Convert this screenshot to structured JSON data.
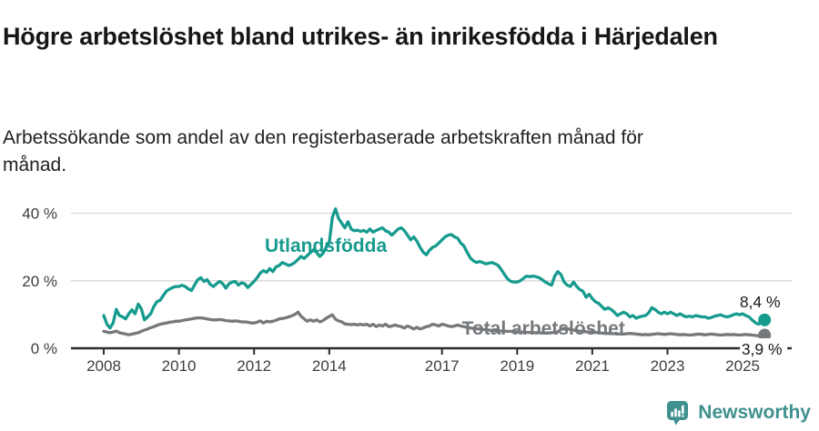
{
  "header": {
    "title": "Högre arbetslöshet bland utrikes- än inrikesfödda i Härjedalen",
    "subtitle": "Arbetssökande som andel av den registerbaserade arbetskraften månad för månad."
  },
  "footer": {
    "brand": "Newsworthy",
    "brand_color": "#3f908e",
    "brand_icon": "newsworthy-bar-chart-bubble-icon"
  },
  "chart_data": {
    "type": "line",
    "title": "Högre arbetslöshet bland utrikes- än inrikesfödda i Härjedalen",
    "subtitle": "Arbetssökande som andel av den registerbaserade arbetskraften månad för månad.",
    "x_unit": "month",
    "x_start_year": 2008,
    "x_end_label_year": 2025.6,
    "grid": true,
    "legend_position": "inline-labels",
    "colors": {
      "grid": "#d9d9d9",
      "axis": "#2d2d2d",
      "tick_text": "#3d3d3d",
      "end_label_text": "#1a1a1a",
      "background": "#ffffff"
    },
    "x_axis": {
      "ticks": [
        2008,
        2010,
        2012,
        2014,
        2017,
        2019,
        2021,
        2023,
        2025
      ]
    },
    "y_axis": {
      "ticks": [
        {
          "value": 0,
          "label": "0 %"
        },
        {
          "value": 20,
          "label": "20 %"
        },
        {
          "value": 40,
          "label": "40 %"
        }
      ],
      "ylim": [
        0,
        46
      ]
    },
    "series": [
      {
        "name": "Utlandsfödda",
        "color": "#169b8e",
        "end_label": "8,4 %",
        "end_value": 8.4,
        "end_label_placement": "above-point",
        "label_anchor": {
          "x": 2013.91,
          "y": 30.4
        },
        "values": [
          9.7,
          7.2,
          6.0,
          7.5,
          11.5,
          9.7,
          9.3,
          8.7,
          10.2,
          11.4,
          10.2,
          13.1,
          11.7,
          8.4,
          9.3,
          10.2,
          12.4,
          13.8,
          14.2,
          15.6,
          16.9,
          17.5,
          18.0,
          18.3,
          18.3,
          18.7,
          18.3,
          17.6,
          17.1,
          18.7,
          20.3,
          20.9,
          19.8,
          20.3,
          18.9,
          18.3,
          19.1,
          19.8,
          19.1,
          17.8,
          19.1,
          19.6,
          19.8,
          18.7,
          19.4,
          19.1,
          18.0,
          18.9,
          19.8,
          20.9,
          22.3,
          23.0,
          22.5,
          23.6,
          22.7,
          24.1,
          24.5,
          25.4,
          25.0,
          24.5,
          24.8,
          25.4,
          26.3,
          27.2,
          26.6,
          27.5,
          28.3,
          29.2,
          28.3,
          27.2,
          28.1,
          29.9,
          31.2,
          38.8,
          41.3,
          38.4,
          37.0,
          35.7,
          37.5,
          35.3,
          34.8,
          35.0,
          34.6,
          34.9,
          34.4,
          35.3,
          34.4,
          34.9,
          35.3,
          35.7,
          34.8,
          34.4,
          33.5,
          34.4,
          35.3,
          35.7,
          34.8,
          33.5,
          32.1,
          33.0,
          31.7,
          29.9,
          28.5,
          27.7,
          29.0,
          29.9,
          30.3,
          31.2,
          32.1,
          33.0,
          33.5,
          33.7,
          33.0,
          32.6,
          31.2,
          30.3,
          28.5,
          26.8,
          25.9,
          25.4,
          25.7,
          25.4,
          25.0,
          25.2,
          25.4,
          25.0,
          24.5,
          23.2,
          21.8,
          20.5,
          19.8,
          19.6,
          19.6,
          20.0,
          20.7,
          21.4,
          21.2,
          21.4,
          21.2,
          20.9,
          20.3,
          19.6,
          19.1,
          18.7,
          21.4,
          22.7,
          21.8,
          19.6,
          18.7,
          18.3,
          19.6,
          18.3,
          17.4,
          16.9,
          15.1,
          16.0,
          14.7,
          13.8,
          13.3,
          12.4,
          11.5,
          12.0,
          11.5,
          10.7,
          9.7,
          10.2,
          10.7,
          10.2,
          9.3,
          9.7,
          8.9,
          9.3,
          9.5,
          9.7,
          10.5,
          12.0,
          11.5,
          10.7,
          10.2,
          10.7,
          10.2,
          10.7,
          10.2,
          9.7,
          10.2,
          9.7,
          9.3,
          9.5,
          9.3,
          9.7,
          9.5,
          9.3,
          9.3,
          8.9,
          9.1,
          9.5,
          9.7,
          9.9,
          9.5,
          9.3,
          9.5,
          9.9,
          10.2,
          9.9,
          10.2,
          9.7,
          9.3,
          8.4,
          7.6,
          7.1,
          7.8,
          8.4
        ]
      },
      {
        "name": "Total arbetslöshet",
        "color": "#76797c",
        "end_label": "3,9 %",
        "end_value": 3.9,
        "end_label_placement": "on-axis",
        "label_anchor": {
          "x": 2019.7,
          "y": 5.9
        },
        "values": [
          5.0,
          4.8,
          4.6,
          4.8,
          5.1,
          4.6,
          4.4,
          4.2,
          4.0,
          4.2,
          4.4,
          4.6,
          5.0,
          5.4,
          5.7,
          6.1,
          6.4,
          6.8,
          7.1,
          7.3,
          7.5,
          7.7,
          7.8,
          8.0,
          8.0,
          8.2,
          8.4,
          8.5,
          8.7,
          8.9,
          9.0,
          9.0,
          8.9,
          8.7,
          8.5,
          8.4,
          8.4,
          8.5,
          8.4,
          8.2,
          8.1,
          8.0,
          8.1,
          8.0,
          7.8,
          7.8,
          7.7,
          7.5,
          7.5,
          7.7,
          8.1,
          7.5,
          8.0,
          7.8,
          8.0,
          8.3,
          8.7,
          8.8,
          9.0,
          9.3,
          9.6,
          10.0,
          10.7,
          9.5,
          8.7,
          8.0,
          8.4,
          8.0,
          8.4,
          7.8,
          8.2,
          8.9,
          9.4,
          9.9,
          8.6,
          8.1,
          7.8,
          7.2,
          7.1,
          7.0,
          7.1,
          6.9,
          7.1,
          6.9,
          7.1,
          6.6,
          7.1,
          6.4,
          6.9,
          6.6,
          7.1,
          6.4,
          6.6,
          6.9,
          6.6,
          6.4,
          6.0,
          6.6,
          6.2,
          5.7,
          6.2,
          5.7,
          6.0,
          6.4,
          6.6,
          7.1,
          6.9,
          6.6,
          7.1,
          6.9,
          6.6,
          6.4,
          6.6,
          6.9,
          6.6,
          6.4,
          6.2,
          6.0,
          5.9,
          5.8,
          5.7,
          5.6,
          5.5,
          5.4,
          5.3,
          5.2,
          5.2,
          5.1,
          5.1,
          5.0,
          5.0,
          4.9,
          4.9,
          4.8,
          4.8,
          4.7,
          4.7,
          4.6,
          4.6,
          4.6,
          4.5,
          4.5,
          4.5,
          4.6,
          4.7,
          4.9,
          5.6,
          5.9,
          5.8,
          5.6,
          5.4,
          5.2,
          5.1,
          5.0,
          4.9,
          4.8,
          4.8,
          4.7,
          4.6,
          4.5,
          4.4,
          4.4,
          4.3,
          4.3,
          4.2,
          4.2,
          4.2,
          4.3,
          4.4,
          4.3,
          4.2,
          4.1,
          4.0,
          4.1,
          4.0,
          4.1,
          4.2,
          4.3,
          4.2,
          4.1,
          4.2,
          4.3,
          4.2,
          4.1,
          4.0,
          4.1,
          4.0,
          3.9,
          4.0,
          4.1,
          4.2,
          4.1,
          4.0,
          4.1,
          4.2,
          4.1,
          4.0,
          3.9,
          4.0,
          4.1,
          4.0,
          4.1,
          4.0,
          3.9,
          4.0,
          4.1,
          4.0,
          3.9,
          3.8,
          3.7,
          3.8,
          3.9
        ]
      }
    ]
  }
}
